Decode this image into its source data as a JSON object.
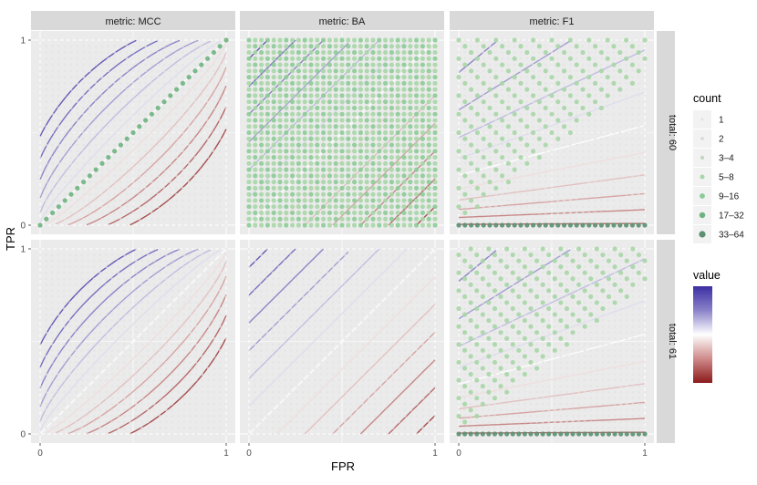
{
  "chart_data": {
    "type": "scatter",
    "title": "",
    "xlabel": "FPR",
    "ylabel": "TPR",
    "xlim": [
      0,
      1
    ],
    "ylim": [
      0,
      1
    ],
    "x_ticks": [
      "0",
      "1"
    ],
    "y_ticks": [
      "0",
      "1"
    ],
    "facet_cols": [
      "metric: MCC",
      "metric: BA",
      "metric: F1"
    ],
    "facet_rows": [
      "total: 60",
      "total: 61"
    ],
    "grid_step_row1": 0.0333,
    "grid_step_row2": 0.0323,
    "contour_levels": [
      -0.9,
      -0.75,
      -0.6,
      -0.45,
      -0.3,
      -0.15,
      0,
      0.15,
      0.3,
      0.45,
      0.6,
      0.75,
      0.9
    ],
    "legend_count": {
      "title": "count",
      "labels": [
        "1",
        "2",
        "3–4",
        "5–8",
        "9–16",
        "17–32",
        "33–64"
      ],
      "colors": [
        "#e2e4e2",
        "#d6dcd6",
        "#c5d6c5",
        "#a9d6a9",
        "#8ccb97",
        "#6eb37f",
        "#5a8f71"
      ]
    },
    "legend_value": {
      "title": "value",
      "colors": [
        "#3c2ea3",
        "#8a83c9",
        "#ffffff",
        "#cf8a8a",
        "#8b1a1a"
      ]
    }
  },
  "colors": {
    "panel_bg": "#ebebeb",
    "strip_bg": "#d9d9d9",
    "grid": "#ffffff"
  }
}
